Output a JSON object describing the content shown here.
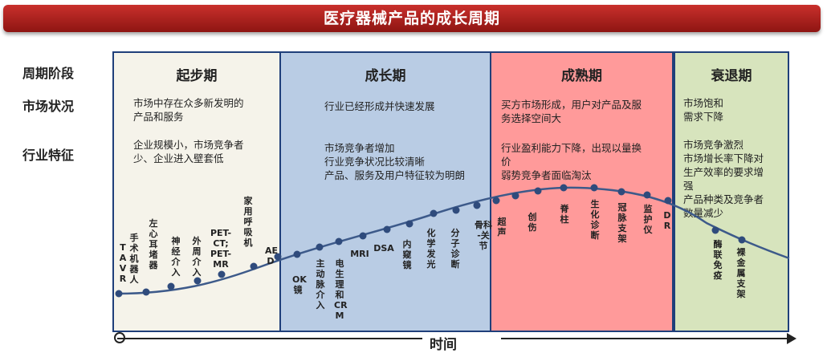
{
  "title": "医疗器械产品的成长周期",
  "row_labels": [
    "周期阶段",
    "市场状况",
    "行业特征"
  ],
  "phases": [
    {
      "name": "起步期",
      "color": "#f5f3ea",
      "market": [
        "市场中存在众多新发明的",
        "产品和服务"
      ],
      "industry": [
        "企业规模小，市场竞争者",
        "少、企业进入壁套低"
      ]
    },
    {
      "name": "成长期",
      "color": "#b9cce4",
      "market": [
        "行业已经形成并快速发展"
      ],
      "industry": [
        "市场竞争者增加",
        "行业竞争状况比较清晰",
        "产品、服务及用户特征较为明朗"
      ]
    },
    {
      "name": "成熟期",
      "color": "#ff9a9a",
      "market": [
        "买方市场形成，用户对产品及服",
        "务选择空间大"
      ],
      "industry": [
        "行业盈利能力下降，出现以量换",
        "价",
        "弱势竞争者面临淘汰"
      ]
    },
    {
      "name": "衰退期",
      "color": "#d7e4bd",
      "market": [
        "市场饱和",
        "需求下降"
      ],
      "industry": [
        "市场竞争激烈",
        "市场增长率下降对",
        "生产效率的要求增",
        "强",
        "产品种类及竞争者",
        "数量减少"
      ]
    }
  ],
  "points": [
    {
      "label": "TAVR"
    },
    {
      "label": "手术机器人"
    },
    {
      "label": "左心耳堵器"
    },
    {
      "label": "神经介入"
    },
    {
      "label": "外周介入"
    },
    {
      "label": "PET-CT; PET-MR"
    },
    {
      "label": "家用呼吸机"
    },
    {
      "label": "AED"
    },
    {
      "label": "OK镜"
    },
    {
      "label": "主动脉介入"
    },
    {
      "label": "电生理和CRM"
    },
    {
      "label": "MRI"
    },
    {
      "label": "DSA"
    },
    {
      "label": "内窥镜"
    },
    {
      "label": "化学发光"
    },
    {
      "label": "分子诊断"
    },
    {
      "label": "骨科-关节"
    },
    {
      "label": "超声"
    },
    {
      "label": "创伤"
    },
    {
      "label": "脊柱"
    },
    {
      "label": "生化诊断"
    },
    {
      "label": "冠脉支架"
    },
    {
      "label": "监护仪"
    },
    {
      "label": "DR"
    },
    {
      "label": "酶联免疫"
    },
    {
      "label": "裸金属支架"
    }
  ],
  "axis_label": "时间",
  "colors": {
    "banner": "#b22222",
    "border": "#1f3f7a",
    "curve": "#3d5a8a",
    "point": "#2f4b7c"
  }
}
